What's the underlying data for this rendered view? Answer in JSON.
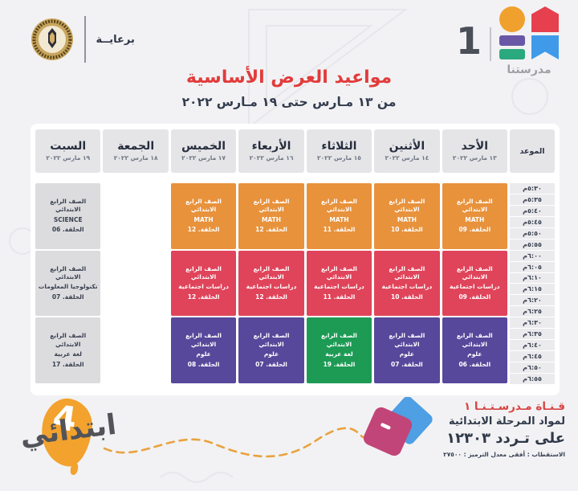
{
  "header": {
    "sponsor_label": "برعايــة",
    "channel_number": "1",
    "channel_name": "مدرستنا",
    "title": "مواعيد العرض الأساسية",
    "subtitle": "من ١٣ مـارس حتى ١٩ مـارس ٢٠٢٢"
  },
  "table": {
    "time_header": "الموعد",
    "times": [
      "٥:٣٠م",
      "٥:٣٥م",
      "٥:٤٠م",
      "٥:٤٥م",
      "٥:٥٠م",
      "٥:٥٥م",
      "٦:٠٠م",
      "٦:٠٥م",
      "٦:١٠م",
      "٦:١٥م",
      "٦:٢٠م",
      "٦:٢٥م",
      "٦:٣٠م",
      "٦:٣٥م",
      "٦:٤٠م",
      "٦:٤٥م",
      "٦:٥٠م",
      "٦:٥٥م"
    ],
    "days": [
      {
        "name": "الأحد",
        "date": "١٣ مارس ٢٠٢٢",
        "cells": [
          {
            "grade": "الصف الرابع الابتدائي",
            "subject": "MATH",
            "episode": "الحلقة. 09",
            "color": "orange"
          },
          {
            "grade": "الصف الرابع الابتدائي",
            "subject": "دراسات اجتماعية",
            "episode": "الحلقة. 09",
            "color": "red"
          },
          {
            "grade": "الصف الرابع الابتدائي",
            "subject": "علوم",
            "episode": "الحلقة. 06",
            "color": "purple"
          }
        ]
      },
      {
        "name": "الأثنين",
        "date": "١٤ مارس ٢٠٢٢",
        "cells": [
          {
            "grade": "الصف الرابع الابتدائي",
            "subject": "MATH",
            "episode": "الحلقة. 10",
            "color": "orange"
          },
          {
            "grade": "الصف الرابع الابتدائي",
            "subject": "دراسات اجتماعية",
            "episode": "الحلقة. 10",
            "color": "red"
          },
          {
            "grade": "الصف الرابع الابتدائي",
            "subject": "علوم",
            "episode": "الحلقة. 07",
            "color": "purple"
          }
        ]
      },
      {
        "name": "الثلاثاء",
        "date": "١٥ مارس ٢٠٢٢",
        "cells": [
          {
            "grade": "الصف الرابع الابتدائي",
            "subject": "MATH",
            "episode": "الحلقة. 11",
            "color": "orange"
          },
          {
            "grade": "الصف الرابع الابتدائي",
            "subject": "دراسات اجتماعية",
            "episode": "الحلقة. 11",
            "color": "red"
          },
          {
            "grade": "الصف الرابع الابتدائي",
            "subject": "لغة عربية",
            "episode": "الحلقة. 19",
            "color": "green"
          }
        ]
      },
      {
        "name": "الأربعاء",
        "date": "١٦ مارس ٢٠٢٢",
        "cells": [
          {
            "grade": "الصف الرابع الابتدائي",
            "subject": "MATH",
            "episode": "الحلقة. 12",
            "color": "orange"
          },
          {
            "grade": "الصف الرابع الابتدائي",
            "subject": "دراسات اجتماعية",
            "episode": "الحلقة. 12",
            "color": "red"
          },
          {
            "grade": "الصف الرابع الابتدائي",
            "subject": "علوم",
            "episode": "الحلقة. 07",
            "color": "purple"
          }
        ]
      },
      {
        "name": "الخميس",
        "date": "١٧ مارس ٢٠٢٢",
        "cells": [
          {
            "grade": "الصف الرابع الابتدائي",
            "subject": "MATH",
            "episode": "الحلقة. 12",
            "color": "orange"
          },
          {
            "grade": "الصف الرابع الابتدائي",
            "subject": "دراسات اجتماعية",
            "episode": "الحلقة. 12",
            "color": "red"
          },
          {
            "grade": "الصف الرابع الابتدائي",
            "subject": "علوم",
            "episode": "الحلقة. 08",
            "color": "purple"
          }
        ]
      },
      {
        "name": "الجمعة",
        "date": "١٨ مارس ٢٠٢٢",
        "cells": [
          null,
          null,
          null
        ]
      },
      {
        "name": "السبت",
        "date": "١٩ مارس ٢٠٢٢",
        "cells": [
          {
            "grade": "الصف الرابع الابتدائي",
            "subject": "SCIENCE",
            "episode": "الحلقة. 06",
            "color": "gray"
          },
          {
            "grade": "الصف الرابع الابتدائي",
            "subject": "تكنولوجيا المعلومات",
            "episode": "الحلقة. 07",
            "color": "gray"
          },
          {
            "grade": "الصف الرابع الابتدائي",
            "subject": "لغة عربية",
            "episode": "الحلقة. 17",
            "color": "gray"
          }
        ]
      }
    ]
  },
  "footer": {
    "stage_word": "ابتدائي",
    "stage_number": "4",
    "line1": "قـنـاة مـدرسـتـنـا ١",
    "line2": "لمواد المرحلة الابتدائية",
    "line3": "على تـردد ١٢٣٠٣",
    "line4": "الاستقطاب : أفقى   معدل الترميز : ٢٧٥٠٠"
  },
  "colors": {
    "orange": "#E8923C",
    "red": "#E0445A",
    "purple": "#57489B",
    "green": "#1D9B55",
    "gray": "#DCDCDF"
  }
}
